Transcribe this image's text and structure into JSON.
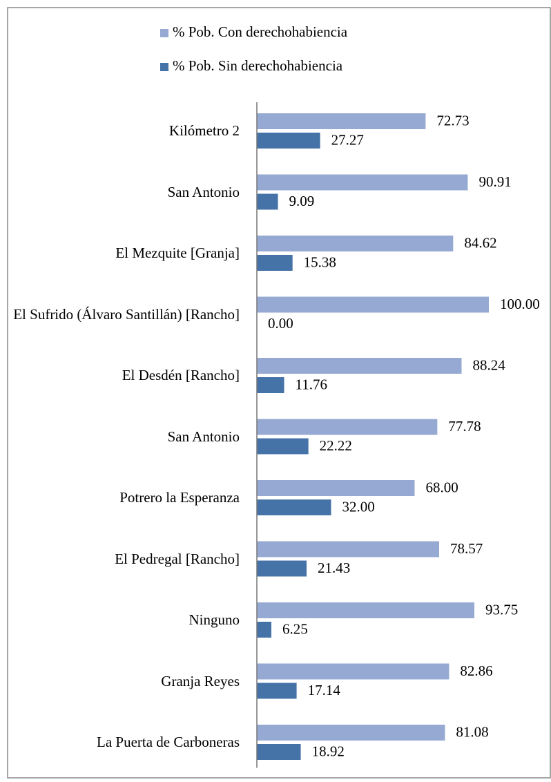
{
  "chart_data": {
    "type": "hbar",
    "categories": [
      "Kilómetro 2",
      "San Antonio",
      "El Mezquite [Granja]",
      "El Sufrido (Álvaro Santillán) [Rancho]",
      "El Desdén [Rancho]",
      "San Antonio",
      "Potrero la Esperanza",
      "El Pedregal [Rancho]",
      "Ninguno",
      "Granja Reyes",
      "La Puerta de Carboneras"
    ],
    "series": [
      {
        "name": "% Pob. Con derechohabiencia",
        "color": "#95a9d3",
        "values": [
          72.73,
          90.91,
          84.62,
          100,
          88.24,
          77.78,
          68,
          78.57,
          93.75,
          82.86,
          81.08
        ],
        "value_labels": [
          "72.73",
          "90.91",
          "84.62",
          "100.00",
          "88.24",
          "77.78",
          "68.00",
          "78.57",
          "93.75",
          "82.86",
          "81.08"
        ]
      },
      {
        "name": "% Pob. Sin derechohabiencia",
        "color": "#4572a7",
        "values": [
          27.27,
          9.09,
          15.38,
          0,
          11.76,
          22.22,
          32,
          21.43,
          6.25,
          17.14,
          18.92
        ],
        "value_labels": [
          "27.27",
          "9.09",
          "15.38",
          "0.00",
          "11.76",
          "22.22",
          "32.00",
          "21.43",
          "6.25",
          "17.14",
          "18.92"
        ]
      }
    ],
    "xlim": [
      0,
      100
    ],
    "legend": "top"
  }
}
